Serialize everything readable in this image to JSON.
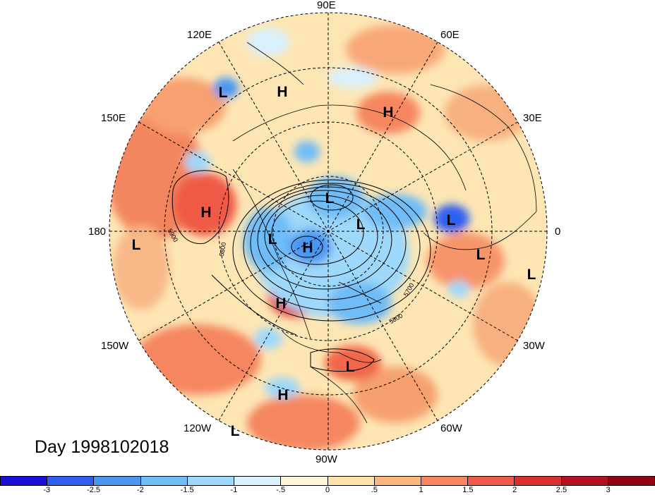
{
  "map": {
    "projection": "north polar stereographic",
    "field": "500 hPa geopotential height contours with shaded anomaly",
    "lon_labels": {
      "e90": "90E",
      "e60": "60E",
      "e30": "30E",
      "zero": "0",
      "w30": "30W",
      "w60": "60W",
      "w90": "90W",
      "w120": "120W",
      "w150": "150W",
      "dateline": "180",
      "e150": "150E",
      "e120": "120E"
    },
    "contour_labels": [
      "5900",
      "5800",
      "5700",
      "5800"
    ],
    "pressure_centers": [
      "L",
      "H",
      "H",
      "H",
      "L",
      "L",
      "L",
      "L",
      "L",
      "H",
      "L",
      "L",
      "H",
      "L",
      "H",
      "L",
      "L",
      "H",
      "L"
    ]
  },
  "day_label": "Day 1998102018",
  "colorbar": {
    "colors": [
      "#1a0ed8",
      "#2e5ef0",
      "#4a96f0",
      "#6fbcf6",
      "#9ed8fa",
      "#d9f1fd",
      "#fdf6d6",
      "#fde3a8",
      "#fbb67d",
      "#f58660",
      "#ef5a46",
      "#d7302e",
      "#b5101f",
      "#8f0516"
    ],
    "ticks": [
      "-3",
      "-2.5",
      "-2",
      "-1.5",
      "-1",
      "-.5",
      "0",
      ".5",
      "1",
      "1.5",
      "2",
      "2.5",
      "3"
    ]
  }
}
